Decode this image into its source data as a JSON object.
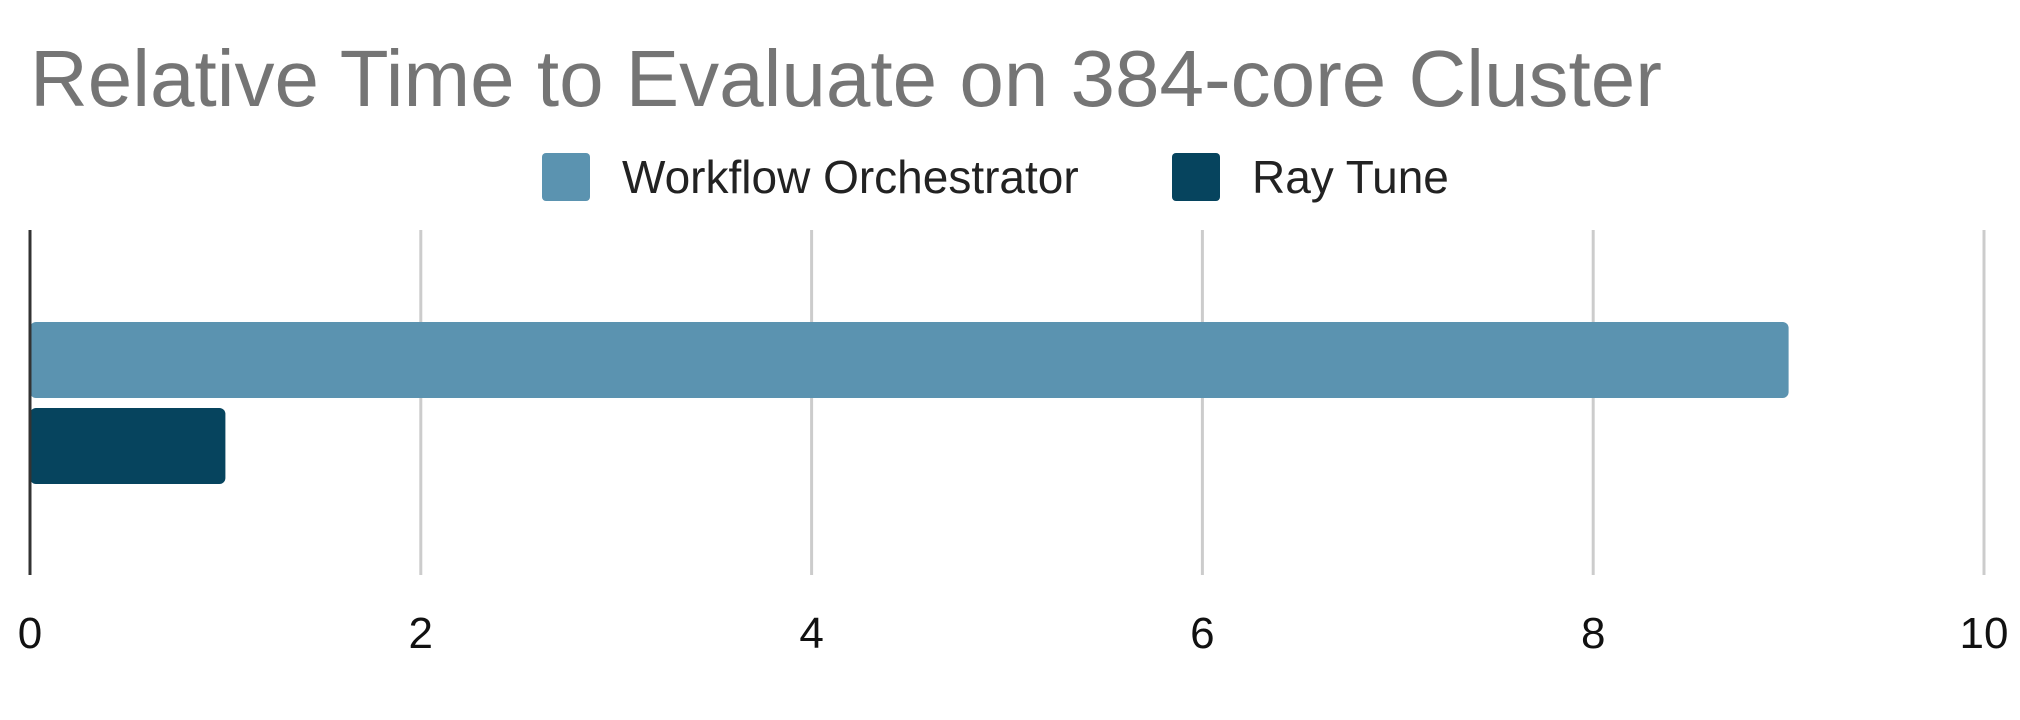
{
  "chart_data": {
    "type": "bar",
    "orientation": "horizontal",
    "title": "Relative Time to Evaluate on 384-core Cluster",
    "xlabel": "",
    "ylabel": "",
    "xlim": [
      0,
      10
    ],
    "x_ticks": [
      "0",
      "2",
      "4",
      "6",
      "8",
      "10"
    ],
    "grid": true,
    "legend_position": "top",
    "categories": [
      ""
    ],
    "series": [
      {
        "name": "Workflow Orchestrator",
        "values": [
          9
        ],
        "color": "#5b93b0"
      },
      {
        "name": "Ray Tune",
        "values": [
          1
        ],
        "color": "#06445e"
      }
    ]
  }
}
